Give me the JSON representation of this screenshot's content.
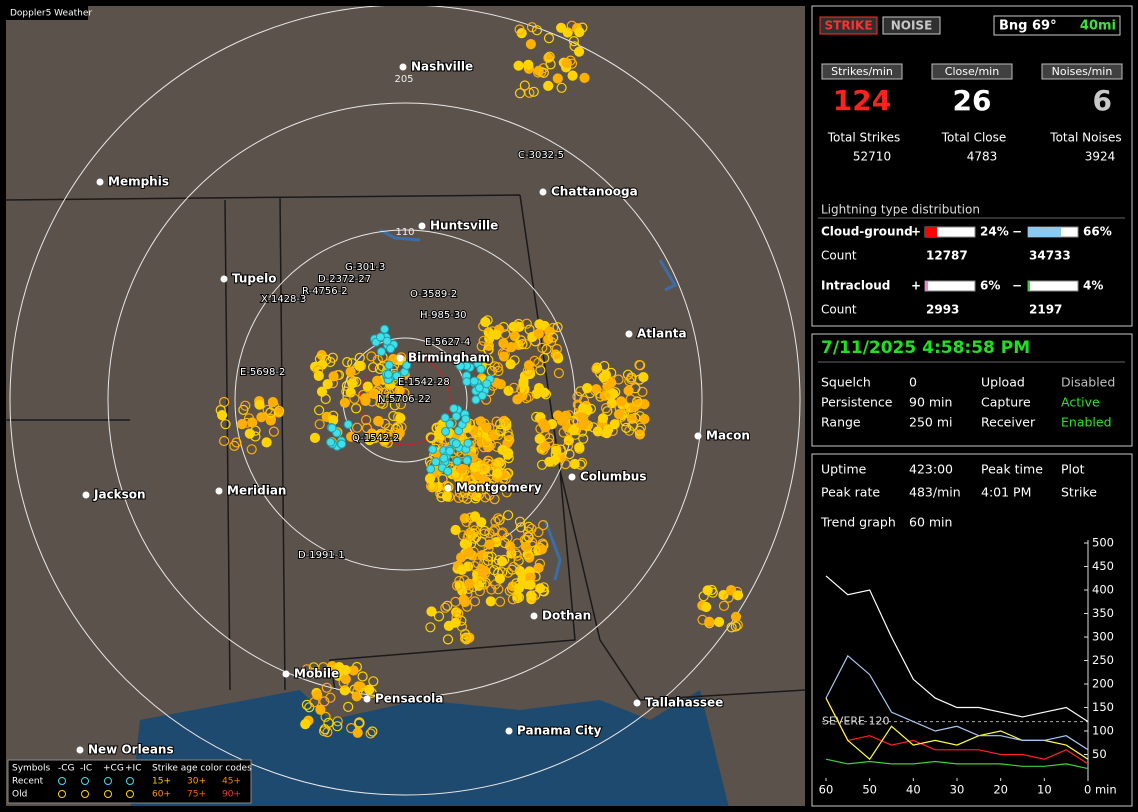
{
  "map": {
    "title": "Doppler5 Weather",
    "ring_labels": [
      "205",
      "110"
    ],
    "cities": [
      "Nashville",
      "Memphis",
      "Chattanooga",
      "Huntsville",
      "Tupelo",
      "Atlanta",
      "Birmingham",
      "Macon",
      "Columbus",
      "Montgomery",
      "Jackson",
      "Meridian",
      "Dothan",
      "Mobile",
      "Pensacola",
      "Tallahassee",
      "Panama City",
      "New Orleans"
    ],
    "storms": [
      "C-3032-5",
      "G-301-3",
      "D-2372-27",
      "R-4756-2",
      "X-1428-3",
      "O-3589-2",
      "H-985-30",
      "E-5627-4",
      "E-5698-2",
      "E-1542-28",
      "N-5706-22",
      "Q-1542-2",
      "D-1991-1"
    ],
    "legend": {
      "symbols_label": "Symbols",
      "symbol_types": [
        "-CG",
        "-IC",
        "+CG",
        "+IC"
      ],
      "age_label": "Strike age color codes",
      "rows": [
        {
          "label": "Recent",
          "ages": [
            "15+",
            "30+",
            "45+"
          ]
        },
        {
          "label": "Old",
          "ages": [
            "60+",
            "75+",
            "90+"
          ]
        }
      ]
    }
  },
  "strike_panel": {
    "buttons": [
      "STRIKE",
      "NOISE"
    ],
    "bearing": "Bng 69°",
    "distance": "40mi",
    "rates": [
      {
        "label": "Strikes/min",
        "value": 124
      },
      {
        "label": "Close/min",
        "value": 26
      },
      {
        "label": "Noises/min",
        "value": 6
      }
    ],
    "totals": [
      {
        "label": "Total Strikes",
        "value": 52710
      },
      {
        "label": "Total Close",
        "value": 4783
      },
      {
        "label": "Total Noises",
        "value": 3924
      }
    ],
    "distribution": {
      "title": "Lightning type distribution",
      "rows": [
        {
          "label": "Cloud-ground",
          "pos_sign": "+",
          "neg_sign": "−",
          "pos_pct": {
            "value": 24,
            "label": "24%"
          },
          "neg_pct": {
            "value": 66,
            "label": "66%"
          },
          "count_label": "Count",
          "pos_count": 12787,
          "neg_count": 34733
        },
        {
          "label": "Intracloud",
          "pos_sign": "+",
          "neg_sign": "−",
          "pos_pct": {
            "value": 6,
            "label": "6%"
          },
          "neg_pct": {
            "value": 4,
            "label": "4%"
          },
          "count_label": "Count",
          "pos_count": 2993,
          "neg_count": 2197
        }
      ]
    }
  },
  "status_panel": {
    "datetime": "7/11/2025 4:58:58 PM",
    "rows": [
      [
        "Squelch",
        "0",
        "Upload",
        "Disabled"
      ],
      [
        "Persistence",
        "90 min",
        "Capture",
        "Active"
      ],
      [
        "Range",
        "250 mi",
        "Receiver",
        "Enabled"
      ]
    ]
  },
  "trend_panel": {
    "rows": [
      [
        "Uptime",
        "423:00",
        "Peak time",
        "Plot"
      ],
      [
        "Peak rate",
        "483/min",
        "4:01 PM",
        "Strike"
      ]
    ],
    "trend_label": "Trend graph",
    "trend_window": "60 min",
    "chart_data": {
      "type": "line",
      "x": [
        60,
        55,
        50,
        45,
        40,
        35,
        30,
        25,
        20,
        15,
        10,
        5,
        0
      ],
      "xlim": [
        60,
        0
      ],
      "ylim": [
        0,
        500
      ],
      "xticks": [
        60,
        50,
        40,
        30,
        20,
        10,
        {
          "value": 0,
          "label": "0 min"
        }
      ],
      "yticks": [
        50,
        100,
        150,
        200,
        250,
        300,
        350,
        400,
        450,
        500
      ],
      "threshold": {
        "value": 120,
        "label": "SEVERE 120"
      },
      "series": [
        {
          "color": "#ffffff",
          "values": [
            430,
            390,
            400,
            300,
            210,
            170,
            150,
            150,
            140,
            130,
            140,
            150,
            120
          ]
        },
        {
          "color": "#a8c8f0",
          "values": [
            170,
            260,
            220,
            140,
            120,
            100,
            110,
            90,
            90,
            80,
            80,
            90,
            60
          ]
        },
        {
          "color": "#ffff40",
          "values": [
            170,
            80,
            40,
            110,
            70,
            80,
            70,
            90,
            100,
            80,
            80,
            70,
            40
          ]
        },
        {
          "color": "#ff2020",
          "values": [
            170,
            80,
            90,
            70,
            80,
            60,
            60,
            60,
            50,
            50,
            40,
            60,
            30
          ]
        },
        {
          "color": "#40d040",
          "values": [
            40,
            30,
            35,
            30,
            30,
            35,
            30,
            30,
            30,
            25,
            25,
            30,
            20
          ]
        }
      ]
    }
  }
}
